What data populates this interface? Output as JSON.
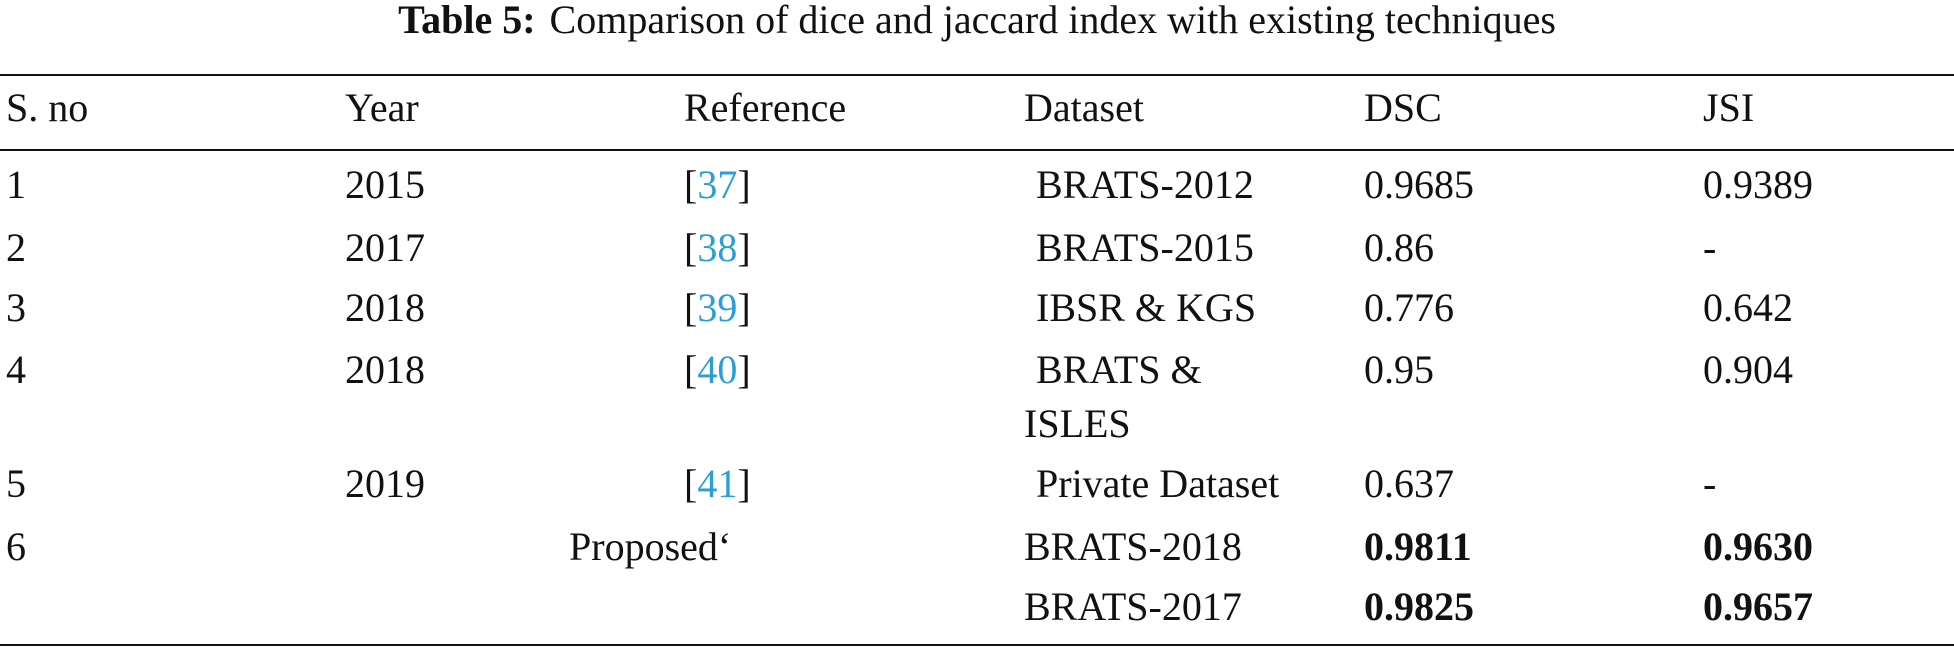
{
  "caption": {
    "label": "Table 5:",
    "text": "Comparison of dice and jaccard index with existing techniques"
  },
  "table": {
    "header": [
      "S. no",
      "Year",
      "Reference",
      "Dataset",
      "DSC",
      "JSI"
    ],
    "rows": [
      {
        "sno": "1",
        "year": "2015",
        "reference": [
          "[",
          "37",
          "]"
        ],
        "dataset": [
          "BRATS-2012"
        ],
        "dsc": "0.9685",
        "jsi": "0.9389",
        "bold": false
      },
      {
        "sno": "2",
        "year": "2017",
        "reference": [
          "[",
          "38",
          "]"
        ],
        "dataset": [
          "BRATS-2015"
        ],
        "dsc": "0.86",
        "jsi": "-",
        "bold": false
      },
      {
        "sno": "3",
        "year": "2018",
        "reference": [
          "[",
          "39",
          "]"
        ],
        "dataset": [
          "IBSR & KGS"
        ],
        "dsc": "0.776",
        "jsi": "0.642",
        "bold": false
      },
      {
        "sno": "4",
        "year": "2018",
        "reference": [
          "[",
          "40",
          "]"
        ],
        "dataset": [
          "BRATS &",
          "ISLES"
        ],
        "dsc": "0.95",
        "jsi": "0.904",
        "bold": false
      },
      {
        "sno": "5",
        "year": "2019",
        "reference": [
          "[",
          "41",
          "]"
        ],
        "dataset": [
          "Private Dataset"
        ],
        "dsc": "0.637",
        "jsi": "-",
        "bold": false
      },
      {
        "sno": "6",
        "year": null,
        "reference": [
          "Proposed‘"
        ],
        "dataset": [
          "BRATS-2018"
        ],
        "dsc": "0.9811",
        "jsi": "0.9630",
        "bold": true
      },
      {
        "sno": null,
        "year": null,
        "reference": null,
        "dataset": [
          "BRATS-2017"
        ],
        "dsc": "0.9825",
        "jsi": "0.9657",
        "bold": true
      }
    ]
  }
}
